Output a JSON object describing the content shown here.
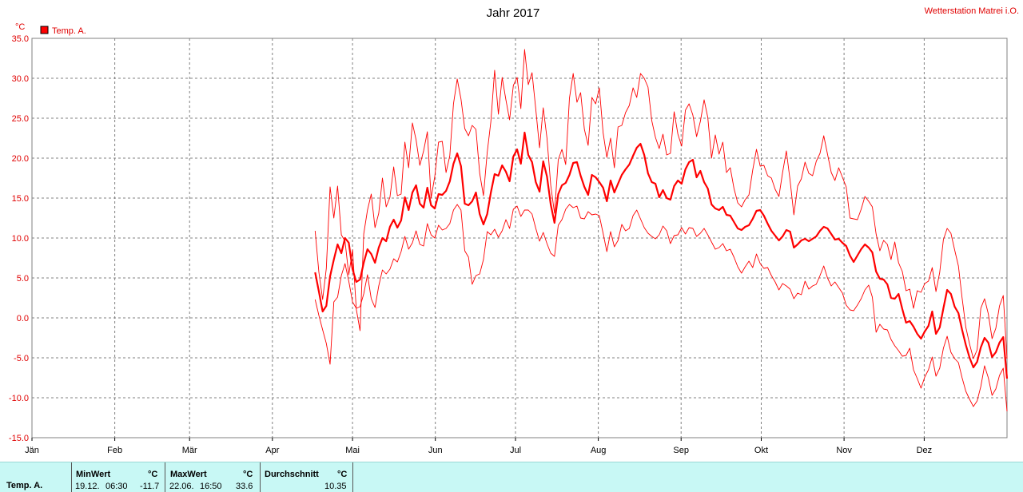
{
  "chart_data": {
    "type": "line",
    "title": "Jahr 2017",
    "station": "Wetterstation Matrei i.O.",
    "unit": "°C",
    "legend": "Temp. A.",
    "legend_placement": "top-left",
    "grid": true,
    "ylim": [
      -15,
      35
    ],
    "yticks": [
      "35.0",
      "30.0",
      "25.0",
      "20.0",
      "15.0",
      "10.0",
      "5.0",
      "0.0",
      "-5.0",
      "-10.0",
      "-15.0"
    ],
    "xticks": [
      {
        "label": "Jän",
        "day": 0
      },
      {
        "label": "Feb",
        "day": 31
      },
      {
        "label": "Mär",
        "day": 59
      },
      {
        "label": "Apr",
        "day": 90
      },
      {
        "label": "Mai",
        "day": 120
      },
      {
        "label": "Jun",
        "day": 151
      },
      {
        "label": "Jul",
        "day": 181
      },
      {
        "label": "Aug",
        "day": 212
      },
      {
        "label": "Sep",
        "day": 243
      },
      {
        "label": "Okt",
        "day": 273
      },
      {
        "label": "Nov",
        "day": 304
      },
      {
        "label": "Dez",
        "day": 334
      }
    ],
    "xlim_days": [
      0,
      365
    ],
    "data_start_day": 106,
    "colors": {
      "series": "#ff0000",
      "grid": "#808080",
      "text": "#000000",
      "accent": "#e00000"
    },
    "series": [
      {
        "name": "Max",
        "stroke": "thin",
        "values": [
          10.9,
          5.7,
          2.3,
          6.2,
          16.4,
          12.5,
          16.5,
          10.4,
          9.6,
          5.4,
          8.5,
          1.1,
          -1.6,
          10.5,
          13.5,
          15.5,
          11.3,
          13.1,
          17.5,
          13.9,
          15.1,
          18.9,
          15.3,
          15.5,
          22.0,
          18.8,
          24.4,
          22.3,
          19.1,
          20.9,
          23.3,
          15.0,
          17.7,
          22.0,
          22.1,
          18.2,
          20.3,
          26.8,
          29.9,
          27.4,
          23.7,
          22.8,
          24.1,
          23.6,
          18.1,
          15.3,
          20.7,
          24.6,
          31.0,
          25.5,
          30.1,
          27.3,
          24.8,
          29.1,
          30.1,
          26.2,
          33.6,
          29.2,
          30.7,
          26.1,
          21.3,
          26.3,
          22.5,
          16.6,
          13.1,
          19.8,
          21.1,
          19.2,
          27.5,
          30.6,
          27.0,
          28.2,
          23.6,
          21.6,
          27.6,
          26.8,
          28.8,
          23.2,
          20.1,
          22.5,
          18.8,
          23.9,
          24.1,
          25.7,
          26.6,
          28.8,
          27.6,
          30.6,
          30.0,
          28.9,
          24.7,
          22.6,
          21.2,
          23.0,
          20.4,
          20.6,
          25.8,
          23.0,
          21.5,
          26.0,
          26.8,
          25.4,
          22.7,
          24.6,
          27.3,
          25.1,
          20.0,
          22.9,
          20.5,
          22.0,
          18.2,
          18.8,
          16.2,
          14.4,
          13.9,
          14.8,
          15.4,
          18.5,
          21.1,
          19.0,
          19.1,
          17.8,
          17.5,
          16.1,
          15.2,
          18.2,
          20.9,
          17.2,
          12.9,
          16.5,
          17.4,
          19.5,
          18.1,
          17.8,
          19.6,
          20.6,
          22.8,
          20.5,
          18.2,
          17.2,
          18.8,
          17.6,
          16.4,
          12.5,
          12.4,
          12.3,
          13.6,
          15.2,
          14.6,
          13.9,
          10.5,
          8.4,
          9.7,
          9.2,
          7.3,
          9.5,
          6.9,
          5.8,
          3.4,
          3.6,
          1.2,
          3.4,
          3.2,
          4.3,
          4.6,
          6.3,
          3.3,
          5.7,
          9.8,
          11.2,
          10.6,
          8.5,
          6.5,
          2.5,
          -1.2,
          -3.3,
          -5.1,
          -4.0,
          1.2,
          2.4,
          0.5,
          -2.6,
          -1.3,
          1.5,
          2.8,
          -5.1
        ]
      },
      {
        "name": "Mittel",
        "stroke": "thick",
        "values": [
          5.7,
          3.3,
          0.8,
          1.5,
          5.2,
          7.3,
          9.2,
          8.1,
          10.0,
          9.4,
          6.1,
          4.5,
          4.8,
          6.9,
          8.6,
          8.0,
          6.9,
          8.8,
          10.0,
          9.6,
          11.4,
          12.3,
          11.3,
          12.2,
          15.1,
          13.5,
          15.7,
          16.6,
          14.3,
          13.8,
          16.3,
          14.1,
          13.7,
          15.5,
          15.4,
          15.9,
          17.1,
          19.3,
          20.6,
          19.0,
          14.3,
          14.1,
          14.6,
          15.7,
          13.0,
          11.7,
          13.0,
          15.7,
          18.0,
          17.8,
          19.1,
          18.3,
          17.1,
          20.2,
          21.1,
          19.3,
          23.2,
          20.4,
          19.5,
          17.0,
          15.8,
          19.6,
          17.7,
          14.2,
          11.9,
          15.5,
          16.6,
          16.9,
          17.9,
          19.4,
          19.5,
          17.8,
          16.4,
          15.4,
          17.9,
          17.6,
          17.0,
          16.3,
          14.6,
          17.2,
          15.7,
          16.8,
          17.9,
          18.6,
          19.2,
          20.3,
          21.3,
          21.8,
          20.4,
          18.1,
          17.0,
          16.8,
          15.1,
          16.0,
          15.0,
          14.8,
          16.5,
          17.2,
          16.8,
          18.6,
          19.5,
          19.8,
          17.6,
          18.4,
          17.0,
          16.2,
          14.2,
          13.7,
          13.5,
          13.9,
          12.9,
          12.8,
          12.0,
          11.2,
          11.0,
          11.4,
          11.6,
          12.4,
          13.4,
          13.5,
          12.8,
          11.8,
          10.9,
          10.3,
          9.7,
          10.2,
          11.0,
          10.8,
          8.8,
          9.2,
          9.7,
          9.9,
          9.6,
          9.9,
          10.2,
          10.9,
          11.4,
          11.2,
          10.5,
          9.8,
          9.9,
          9.4,
          9.0,
          7.8,
          7.0,
          7.8,
          8.6,
          9.2,
          8.8,
          8.2,
          5.8,
          4.9,
          4.8,
          4.2,
          2.5,
          2.4,
          3.0,
          1.1,
          -0.6,
          -0.4,
          -1.1,
          -2.0,
          -2.6,
          -1.7,
          -1.0,
          0.8,
          -2.0,
          -1.2,
          1.2,
          3.5,
          3.0,
          1.4,
          0.6,
          -1.5,
          -3.4,
          -5.0,
          -6.2,
          -5.5,
          -3.7,
          -2.5,
          -3.1,
          -4.9,
          -4.3,
          -3.1,
          -2.4,
          -7.6
        ]
      },
      {
        "name": "Min",
        "stroke": "thin",
        "values": [
          2.3,
          0.3,
          -1.5,
          -3.2,
          -5.8,
          2.0,
          2.6,
          5.3,
          6.8,
          4.6,
          2.0,
          1.2,
          1.4,
          3.0,
          5.4,
          2.4,
          1.3,
          4.0,
          6.0,
          5.5,
          6.1,
          7.4,
          7.0,
          8.3,
          10.2,
          8.6,
          9.4,
          10.9,
          9.2,
          9.0,
          11.8,
          10.4,
          10.0,
          11.6,
          11.0,
          11.2,
          11.8,
          13.5,
          14.2,
          13.5,
          8.4,
          7.6,
          4.2,
          5.3,
          5.5,
          7.3,
          10.8,
          10.4,
          11.1,
          10.1,
          10.9,
          12.3,
          11.2,
          13.6,
          14.0,
          12.7,
          13.5,
          13.5,
          13.0,
          11.2,
          9.6,
          10.7,
          9.3,
          8.1,
          7.7,
          11.6,
          12.3,
          13.6,
          14.2,
          13.8,
          14.0,
          12.5,
          12.4,
          13.3,
          12.9,
          13.0,
          12.8,
          10.6,
          8.3,
          10.8,
          8.9,
          9.7,
          11.7,
          10.9,
          11.2,
          12.8,
          13.5,
          12.4,
          11.3,
          10.6,
          10.2,
          9.9,
          10.4,
          11.5,
          10.9,
          9.3,
          10.3,
          10.4,
          11.3,
          10.5,
          11.3,
          11.2,
          10.2,
          10.6,
          11.2,
          10.4,
          9.5,
          8.6,
          8.8,
          9.3,
          8.4,
          8.6,
          7.6,
          6.4,
          5.6,
          6.4,
          7.1,
          6.3,
          8.0,
          6.8,
          6.2,
          6.3,
          5.3,
          4.5,
          3.5,
          4.3,
          4.0,
          3.6,
          2.4,
          3.1,
          2.9,
          4.6,
          3.6,
          4.0,
          4.2,
          5.3,
          6.5,
          5.0,
          4.0,
          4.5,
          3.8,
          3.1,
          1.6,
          1.0,
          0.9,
          1.6,
          2.4,
          3.5,
          4.1,
          2.6,
          -1.8,
          -0.8,
          -1.4,
          -1.5,
          -2.7,
          -3.5,
          -4.1,
          -4.8,
          -4.7,
          -3.8,
          -6.5,
          -7.6,
          -8.8,
          -7.4,
          -6.5,
          -4.9,
          -7.3,
          -6.3,
          -3.8,
          -2.3,
          -4.3,
          -5.1,
          -5.6,
          -7.5,
          -9.2,
          -10.2,
          -11.1,
          -10.4,
          -8.6,
          -6.0,
          -7.5,
          -9.7,
          -8.9,
          -7.2,
          -6.3,
          -11.7
        ]
      }
    ]
  },
  "footer": {
    "row_label": "Temp. A.",
    "min_header": "MinWert",
    "min_unit": "°C",
    "min_date": "19.12.",
    "min_time": "06:30",
    "min_value": "-11.7",
    "max_header": "MaxWert",
    "max_unit": "°C",
    "max_date": "22.06.",
    "max_time": "16:50",
    "max_value": "33.6",
    "avg_header": "Durchschnitt",
    "avg_unit": "°C",
    "avg_value": "10.35"
  }
}
